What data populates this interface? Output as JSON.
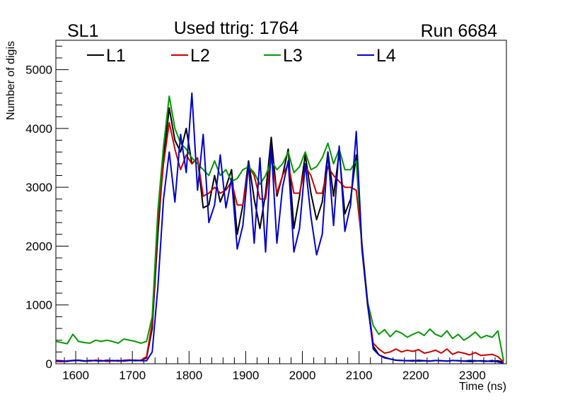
{
  "header": {
    "left_label": "SL1",
    "center_label": "Used ttrig: 1764",
    "right_label": "Run 6684"
  },
  "chart_data": {
    "type": "line",
    "xlabel": "Time (ns)",
    "ylabel": "Number of digis",
    "xlim": [
      1565,
      2360
    ],
    "ylim": [
      0,
      5500
    ],
    "x_ticks": [
      1600,
      1700,
      1800,
      1900,
      2000,
      2100,
      2200,
      2300
    ],
    "y_ticks": [
      0,
      1000,
      2000,
      3000,
      4000,
      5000
    ],
    "grid": false,
    "legend_position": "top",
    "x": [
      1565,
      1575,
      1585,
      1595,
      1605,
      1615,
      1625,
      1635,
      1645,
      1655,
      1665,
      1675,
      1685,
      1695,
      1705,
      1715,
      1725,
      1735,
      1745,
      1755,
      1765,
      1775,
      1785,
      1795,
      1805,
      1815,
      1825,
      1835,
      1845,
      1855,
      1865,
      1875,
      1885,
      1895,
      1905,
      1915,
      1925,
      1935,
      1945,
      1955,
      1965,
      1975,
      1985,
      1995,
      2005,
      2015,
      2025,
      2035,
      2045,
      2055,
      2065,
      2075,
      2085,
      2095,
      2105,
      2115,
      2125,
      2135,
      2145,
      2155,
      2165,
      2175,
      2185,
      2195,
      2205,
      2215,
      2225,
      2235,
      2245,
      2255,
      2265,
      2275,
      2285,
      2295,
      2305,
      2315,
      2325,
      2335,
      2345,
      2355
    ],
    "series": [
      {
        "name": "L1",
        "color": "#000000",
        "values": [
          45,
          40,
          45,
          50,
          55,
          45,
          50,
          55,
          50,
          45,
          55,
          45,
          50,
          60,
          50,
          55,
          100,
          600,
          2200,
          3500,
          4350,
          3800,
          3600,
          4000,
          3400,
          3500,
          2650,
          2700,
          3200,
          2750,
          3000,
          3300,
          2200,
          2700,
          3450,
          2800,
          2300,
          2900,
          3850,
          2850,
          3200,
          3650,
          2300,
          2850,
          3550,
          2900,
          2450,
          2750,
          3600,
          2850,
          3600,
          2550,
          2800,
          3550,
          1950,
          1000,
          300,
          150,
          110,
          80,
          60,
          55,
          50,
          55,
          45,
          50,
          45,
          55,
          50,
          45,
          55,
          50,
          45,
          40,
          45,
          50,
          45,
          40,
          50,
          30
        ]
      },
      {
        "name": "L2",
        "color": "#cc0000",
        "values": [
          40,
          35,
          50,
          55,
          60,
          50,
          45,
          60,
          55,
          40,
          50,
          45,
          60,
          65,
          55,
          60,
          120,
          700,
          2400,
          3400,
          4100,
          3650,
          3300,
          3550,
          3400,
          3500,
          2850,
          2900,
          3000,
          2900,
          2950,
          3100,
          2700,
          2700,
          3350,
          3200,
          2800,
          2800,
          3500,
          2900,
          3200,
          3400,
          2900,
          2900,
          3350,
          3200,
          2900,
          2900,
          3350,
          3200,
          3100,
          3000,
          3000,
          2950,
          2050,
          1050,
          350,
          250,
          180,
          200,
          250,
          200,
          230,
          210,
          240,
          180,
          200,
          230,
          180,
          250,
          160,
          200,
          180,
          150,
          190,
          140,
          150,
          160,
          120,
          30
        ]
      },
      {
        "name": "L3",
        "color": "#009900",
        "values": [
          380,
          360,
          340,
          500,
          380,
          360,
          350,
          400,
          380,
          400,
          380,
          350,
          420,
          400,
          380,
          350,
          380,
          800,
          2600,
          3700,
          4550,
          4000,
          3750,
          3650,
          3500,
          3400,
          3300,
          3200,
          3450,
          3200,
          3300,
          3100,
          3150,
          3300,
          3350,
          3250,
          3050,
          3200,
          3450,
          3300,
          3400,
          3600,
          3250,
          3350,
          3600,
          3300,
          3350,
          3500,
          3750,
          3400,
          3650,
          3300,
          3300,
          3450,
          2000,
          1050,
          650,
          500,
          580,
          460,
          560,
          520,
          450,
          500,
          540,
          480,
          590,
          500,
          460,
          560,
          430,
          500,
          400,
          460,
          540,
          440,
          480,
          450,
          560,
          50
        ]
      },
      {
        "name": "L4",
        "color": "#0000cc",
        "values": [
          55,
          50,
          40,
          55,
          60,
          45,
          55,
          50,
          45,
          60,
          50,
          55,
          45,
          55,
          60,
          50,
          50,
          200,
          1300,
          2800,
          3600,
          2750,
          3900,
          3250,
          4600,
          2950,
          3900,
          2400,
          2700,
          3550,
          2650,
          3150,
          1950,
          2350,
          3400,
          2050,
          3500,
          1900,
          3700,
          2050,
          3000,
          3450,
          1900,
          2300,
          3400,
          2500,
          1850,
          2200,
          3600,
          2350,
          3700,
          2250,
          2700,
          3950,
          2000,
          1050,
          250,
          150,
          100,
          80,
          60,
          55,
          50,
          45,
          60,
          50,
          45,
          55,
          50,
          45,
          55,
          50,
          45,
          55,
          50,
          45,
          40,
          55,
          30,
          10
        ]
      }
    ]
  }
}
